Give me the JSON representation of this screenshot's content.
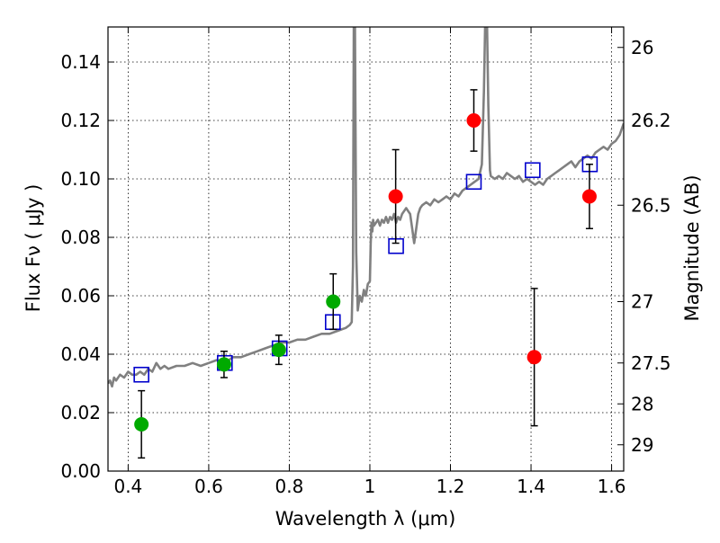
{
  "chart_data": {
    "type": "scatter",
    "title": "",
    "xlabel": "Wavelength  λ (μm)",
    "ylabel": "Flux  Fν  ( μJy )",
    "ylabel_right": "Magnitude (AB)",
    "xlim": [
      0.35,
      1.63
    ],
    "ylim": [
      0.0,
      0.152
    ],
    "grid": true,
    "x_ticks": [
      0.4,
      0.6,
      0.8,
      1.0,
      1.2,
      1.4,
      1.6
    ],
    "x_tick_labels": [
      "0.4",
      "0.6",
      "0.8",
      "1",
      "1.2",
      "1.4",
      "1.6"
    ],
    "y_ticks": [
      0.0,
      0.02,
      0.04,
      0.06,
      0.08,
      0.1,
      0.12,
      0.14
    ],
    "y_tick_labels": [
      "0.00",
      "0.02",
      "0.04",
      "0.06",
      "0.08",
      "0.10",
      "0.12",
      "0.14"
    ],
    "right_ticks": [
      {
        "label": "26",
        "flux": 0.145
      },
      {
        "label": "26.2",
        "flux": 0.12
      },
      {
        "label": "26.5",
        "flux": 0.091
      },
      {
        "label": "27",
        "flux": 0.058
      },
      {
        "label": "27.5",
        "flux": 0.037
      },
      {
        "label": "28",
        "flux": 0.023
      },
      {
        "label": "29",
        "flux": 0.009
      }
    ],
    "colors": {
      "template": "#808080",
      "model_marker": "#0000cc",
      "detection": "#00aa00",
      "measurement": "#ff0000",
      "errorbar": "#000000",
      "grid": "#000000"
    },
    "series": [
      {
        "kind": "line",
        "points": [
          [
            0.35,
            0.03
          ],
          [
            0.355,
            0.031
          ],
          [
            0.36,
            0.029
          ],
          [
            0.365,
            0.032
          ],
          [
            0.37,
            0.031
          ],
          [
            0.38,
            0.033
          ],
          [
            0.39,
            0.032
          ],
          [
            0.4,
            0.034
          ],
          [
            0.41,
            0.033
          ],
          [
            0.42,
            0.033
          ],
          [
            0.43,
            0.034
          ],
          [
            0.44,
            0.033
          ],
          [
            0.45,
            0.035
          ],
          [
            0.46,
            0.034
          ],
          [
            0.47,
            0.037
          ],
          [
            0.48,
            0.035
          ],
          [
            0.49,
            0.036
          ],
          [
            0.5,
            0.035
          ],
          [
            0.52,
            0.036
          ],
          [
            0.54,
            0.036
          ],
          [
            0.56,
            0.037
          ],
          [
            0.58,
            0.036
          ],
          [
            0.6,
            0.037
          ],
          [
            0.62,
            0.038
          ],
          [
            0.64,
            0.037
          ],
          [
            0.66,
            0.039
          ],
          [
            0.68,
            0.039
          ],
          [
            0.7,
            0.04
          ],
          [
            0.72,
            0.041
          ],
          [
            0.74,
            0.042
          ],
          [
            0.76,
            0.043
          ],
          [
            0.78,
            0.044
          ],
          [
            0.8,
            0.044
          ],
          [
            0.82,
            0.045
          ],
          [
            0.84,
            0.045
          ],
          [
            0.86,
            0.046
          ],
          [
            0.88,
            0.047
          ],
          [
            0.9,
            0.047
          ],
          [
            0.92,
            0.048
          ],
          [
            0.94,
            0.049
          ],
          [
            0.95,
            0.05
          ],
          [
            0.955,
            0.051
          ],
          [
            0.958,
            0.07
          ],
          [
            0.96,
            0.152
          ],
          [
            0.963,
            0.152
          ],
          [
            0.966,
            0.075
          ],
          [
            0.97,
            0.055
          ],
          [
            0.975,
            0.06
          ],
          [
            0.98,
            0.058
          ],
          [
            0.985,
            0.062
          ],
          [
            0.99,
            0.06
          ],
          [
            0.995,
            0.064
          ],
          [
            1.0,
            0.065
          ],
          [
            1.002,
            0.078
          ],
          [
            1.004,
            0.085
          ],
          [
            1.006,
            0.082
          ],
          [
            1.008,
            0.086
          ],
          [
            1.01,
            0.084
          ],
          [
            1.015,
            0.085
          ],
          [
            1.02,
            0.086
          ],
          [
            1.025,
            0.084
          ],
          [
            1.03,
            0.086
          ],
          [
            1.035,
            0.085
          ],
          [
            1.04,
            0.087
          ],
          [
            1.045,
            0.085
          ],
          [
            1.05,
            0.087
          ],
          [
            1.055,
            0.086
          ],
          [
            1.06,
            0.088
          ],
          [
            1.065,
            0.085
          ],
          [
            1.07,
            0.087
          ],
          [
            1.075,
            0.086
          ],
          [
            1.08,
            0.088
          ],
          [
            1.085,
            0.089
          ],
          [
            1.09,
            0.09
          ],
          [
            1.095,
            0.089
          ],
          [
            1.1,
            0.088
          ],
          [
            1.105,
            0.083
          ],
          [
            1.11,
            0.078
          ],
          [
            1.115,
            0.083
          ],
          [
            1.12,
            0.088
          ],
          [
            1.125,
            0.09
          ],
          [
            1.13,
            0.091
          ],
          [
            1.14,
            0.092
          ],
          [
            1.15,
            0.091
          ],
          [
            1.16,
            0.093
          ],
          [
            1.17,
            0.092
          ],
          [
            1.18,
            0.093
          ],
          [
            1.19,
            0.094
          ],
          [
            1.2,
            0.093
          ],
          [
            1.21,
            0.095
          ],
          [
            1.22,
            0.094
          ],
          [
            1.23,
            0.096
          ],
          [
            1.24,
            0.097
          ],
          [
            1.25,
            0.098
          ],
          [
            1.26,
            0.099
          ],
          [
            1.27,
            0.1
          ],
          [
            1.278,
            0.105
          ],
          [
            1.283,
            0.13
          ],
          [
            1.286,
            0.152
          ],
          [
            1.291,
            0.152
          ],
          [
            1.294,
            0.125
          ],
          [
            1.298,
            0.103
          ],
          [
            1.3,
            0.101
          ],
          [
            1.31,
            0.1
          ],
          [
            1.32,
            0.101
          ],
          [
            1.33,
            0.1
          ],
          [
            1.34,
            0.102
          ],
          [
            1.35,
            0.101
          ],
          [
            1.36,
            0.1
          ],
          [
            1.37,
            0.101
          ],
          [
            1.38,
            0.099
          ],
          [
            1.39,
            0.1
          ],
          [
            1.4,
            0.099
          ],
          [
            1.41,
            0.098
          ],
          [
            1.42,
            0.099
          ],
          [
            1.43,
            0.098
          ],
          [
            1.44,
            0.1
          ],
          [
            1.45,
            0.101
          ],
          [
            1.46,
            0.102
          ],
          [
            1.47,
            0.103
          ],
          [
            1.48,
            0.104
          ],
          [
            1.49,
            0.105
          ],
          [
            1.5,
            0.106
          ],
          [
            1.51,
            0.104
          ],
          [
            1.52,
            0.106
          ],
          [
            1.53,
            0.107
          ],
          [
            1.54,
            0.108
          ],
          [
            1.55,
            0.107
          ],
          [
            1.56,
            0.109
          ],
          [
            1.57,
            0.11
          ],
          [
            1.58,
            0.111
          ],
          [
            1.59,
            0.11
          ],
          [
            1.6,
            0.112
          ],
          [
            1.61,
            0.113
          ],
          [
            1.62,
            0.115
          ],
          [
            1.63,
            0.119
          ]
        ]
      },
      {
        "kind": "square",
        "points": [
          {
            "x": 0.433,
            "y": 0.033
          },
          {
            "x": 0.64,
            "y": 0.037
          },
          {
            "x": 0.776,
            "y": 0.042
          },
          {
            "x": 0.908,
            "y": 0.051
          },
          {
            "x": 1.065,
            "y": 0.077
          },
          {
            "x": 1.258,
            "y": 0.099
          },
          {
            "x": 1.404,
            "y": 0.103
          },
          {
            "x": 1.546,
            "y": 0.105
          }
        ]
      },
      {
        "kind": "circle",
        "points": [
          {
            "x": 0.433,
            "y": 0.016,
            "err": 0.0115
          },
          {
            "x": 0.638,
            "y": 0.0365,
            "err": 0.0045
          },
          {
            "x": 0.774,
            "y": 0.0415,
            "err": 0.005
          },
          {
            "x": 0.909,
            "y": 0.058,
            "err": 0.0095
          }
        ]
      },
      {
        "kind": "circle",
        "points": [
          {
            "x": 1.064,
            "y": 0.094,
            "err": 0.016
          },
          {
            "x": 1.258,
            "y": 0.12,
            "err": 0.0105
          },
          {
            "x": 1.408,
            "y": 0.039,
            "err": 0.0235
          },
          {
            "x": 1.545,
            "y": 0.094,
            "err": 0.011
          }
        ]
      }
    ]
  }
}
